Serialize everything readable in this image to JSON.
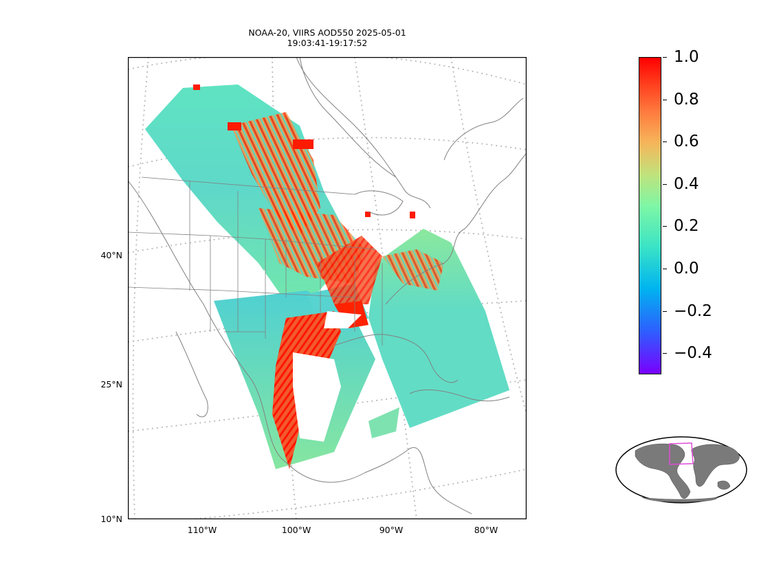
{
  "title": {
    "line1": "NOAA-20, VIIRS AOD550 2025-05-01",
    "line2": "19:03:41-19:17:52"
  },
  "map": {
    "lat_labels": [
      "40°N",
      "25°N",
      "10°N"
    ],
    "lon_labels": [
      "110°W",
      "100°W",
      "90°W",
      "80°W"
    ],
    "coast_color": "#808080",
    "grid_color": "#b8b8b8"
  },
  "colorbar": {
    "colormap": "rainbow",
    "range": [
      -0.5,
      1.0
    ],
    "ticks": [
      "1.0",
      "0.8",
      "0.6",
      "0.4",
      "0.2",
      "0.0",
      "−0.2",
      "−0.4"
    ]
  },
  "inset": {
    "land_color": "#7a7a7a",
    "highlight_color": "#e14bd8"
  }
}
